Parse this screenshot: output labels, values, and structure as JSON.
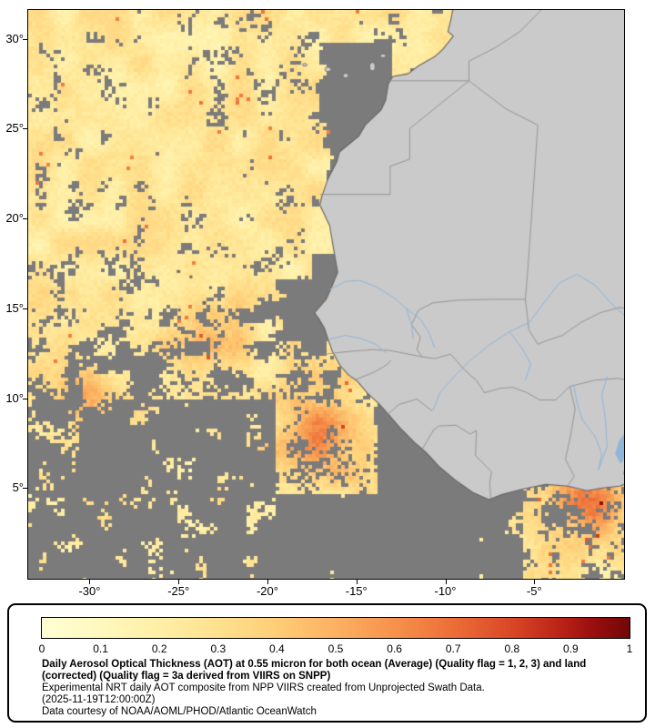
{
  "map": {
    "lon_min": -33.45,
    "lon_max": 0.05,
    "lat_min": -0.05,
    "lat_max": 31.6,
    "y_ticks": [
      {
        "label": "30°",
        "lat": 30
      },
      {
        "label": "25°",
        "lat": 25
      },
      {
        "label": "20°",
        "lat": 20
      },
      {
        "label": "15°",
        "lat": 15
      },
      {
        "label": "10°",
        "lat": 10
      },
      {
        "label": "5°",
        "lat": 5
      }
    ],
    "x_ticks": [
      {
        "label": "-30°",
        "lon": -30
      },
      {
        "label": "-25°",
        "lon": -25
      },
      {
        "label": "-20°",
        "lon": -20
      },
      {
        "label": "-15°",
        "lon": -15
      },
      {
        "label": "-10°",
        "lon": -10
      },
      {
        "label": "-5°",
        "lon": -5
      }
    ],
    "colors": {
      "no_data_ocean": "#7b7b7b",
      "land": "#cacaca",
      "coast": "#646464",
      "border": "#8f8f8f",
      "river": "#8fb6d9",
      "dark_island": "#696969",
      "frame": "#000000"
    }
  },
  "colorbar": {
    "min": 0,
    "max": 1,
    "ticks": [
      "0",
      "0.1",
      "0.2",
      "0.3",
      "0.4",
      "0.5",
      "0.6",
      "0.7",
      "0.8",
      "0.9",
      "1"
    ],
    "stops": [
      [
        0.0,
        "#FFFFD5"
      ],
      [
        0.1,
        "#FFF8BE"
      ],
      [
        0.2,
        "#FFEFA6"
      ],
      [
        0.3,
        "#FFE18E"
      ],
      [
        0.4,
        "#FFCD77"
      ],
      [
        0.5,
        "#FCB161"
      ],
      [
        0.6,
        "#F6924C"
      ],
      [
        0.7,
        "#EC6E38"
      ],
      [
        0.8,
        "#D94727"
      ],
      [
        0.88,
        "#BC2417"
      ],
      [
        0.94,
        "#9A0E0E"
      ],
      [
        1.0,
        "#720808"
      ]
    ]
  },
  "caption": {
    "title": "Daily Aerosol Optical Thickness (AOT) at 0.55 micron for both ocean (Average) (Quality flag = 1, 2, 3) and land (corrected) (Quality flag = 3a derived from VIIRS on SNPP)",
    "experimental": "Experimental NRT daily AOT composite from NPP VIIRS created from Unprojected Swath Data.",
    "timestamp": "(2025-11-19T12:00:00Z)",
    "credit": "Data courtesy of NOAA/AOML/PHOD/Atlantic OceanWatch"
  }
}
